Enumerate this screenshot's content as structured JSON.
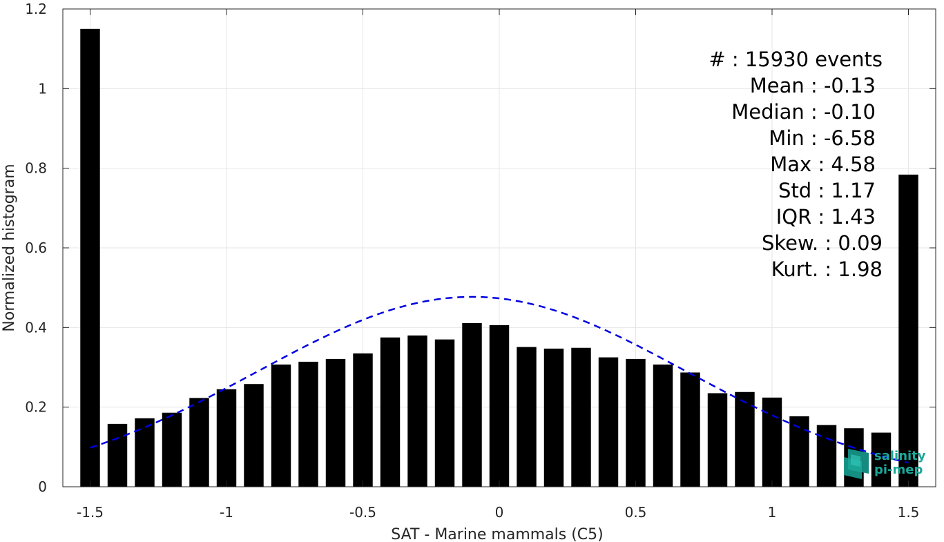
{
  "chart_data": {
    "type": "bar",
    "xlabel": "SAT - Marine mammals (C5)",
    "ylabel": "Normalized histogram",
    "xlim": [
      -1.6,
      1.6
    ],
    "ylim": [
      0,
      1.2
    ],
    "xticks": [
      -1.5,
      -1,
      -0.5,
      0,
      0.5,
      1,
      1.5
    ],
    "xtick_labels": [
      "-1.5",
      "-1",
      "-0.5",
      "0",
      "0.5",
      "1",
      "1.5"
    ],
    "yticks": [
      0,
      0.2,
      0.4,
      0.6,
      0.8,
      1,
      1.2
    ],
    "ytick_labels": [
      "0",
      "0.2",
      "0.4",
      "0.6",
      "0.8",
      "1",
      "1.2"
    ],
    "grid": true,
    "bar_color": "#000000",
    "fit_color": "#0000e0",
    "bins": {
      "x": [
        -1.5,
        -1.4,
        -1.3,
        -1.2,
        -1.1,
        -1.0,
        -0.9,
        -0.8,
        -0.7,
        -0.6,
        -0.5,
        -0.4,
        -0.3,
        -0.2,
        -0.1,
        0.0,
        0.1,
        0.2,
        0.3,
        0.4,
        0.5,
        0.6,
        0.7,
        0.8,
        0.9,
        1.0,
        1.1,
        1.2,
        1.3,
        1.4,
        1.5
      ],
      "values": [
        1.15,
        0.158,
        0.172,
        0.186,
        0.223,
        0.245,
        0.258,
        0.307,
        0.314,
        0.321,
        0.335,
        0.375,
        0.38,
        0.37,
        0.411,
        0.406,
        0.351,
        0.347,
        0.349,
        0.325,
        0.321,
        0.307,
        0.287,
        0.235,
        0.238,
        0.224,
        0.177,
        0.155,
        0.147,
        0.136,
        0.784
      ]
    },
    "fit_curve": {
      "style": "dashed",
      "mean": -0.1,
      "std": 0.787,
      "peak": 0.477,
      "x_start": -1.5,
      "x_end": 1.5
    },
    "annotation": {
      "lines": [
        "#  : 15930 events",
        "Mean : -0.13",
        "Median : -0.10",
        "Min : -6.58",
        "Max : 4.58",
        "Std : 1.17",
        "IQR : 1.43",
        "Skew. : 0.09",
        "Kurt. : 1.98"
      ]
    }
  },
  "logo": {
    "line1": "salinity",
    "line2": "pi-mep",
    "color": "#1aa89a"
  }
}
